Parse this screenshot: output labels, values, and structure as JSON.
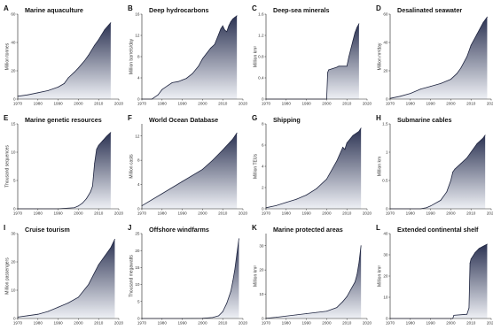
{
  "colors": {
    "area_top": "#2b3252",
    "area_bottom": "#eef0f5",
    "line": "#1f2540"
  },
  "chart_data": [
    {
      "type": "area",
      "letter": "A",
      "title": "Marine aquaculture",
      "ylabel": "Million tonnes",
      "xlim": [
        1970,
        2020
      ],
      "ylim": [
        0,
        60
      ],
      "yticks": [
        0,
        20,
        40,
        60
      ],
      "xticks": [
        1970,
        1980,
        1990,
        2000,
        2010,
        2020
      ],
      "x": [
        1970,
        1975,
        1980,
        1985,
        1990,
        1993,
        1995,
        1998,
        2000,
        2003,
        2005,
        2008,
        2010,
        2013,
        2016
      ],
      "values": [
        2,
        3,
        4.5,
        6,
        8.5,
        11,
        15,
        19,
        22,
        27,
        31,
        38,
        42,
        49,
        54
      ]
    },
    {
      "type": "area",
      "letter": "B",
      "title": "Deep hydrocarbons",
      "ylabel": "Million barrels/day",
      "xlim": [
        1970,
        2020
      ],
      "ylim": [
        0,
        16
      ],
      "yticks": [
        0,
        4,
        8,
        12,
        16
      ],
      "xticks": [
        1970,
        1980,
        1990,
        2000,
        2010,
        2020
      ],
      "x": [
        1970,
        1975,
        1978,
        1980,
        1983,
        1985,
        1988,
        1990,
        1992,
        1995,
        1998,
        2000,
        2002,
        2004,
        2006,
        2008,
        2009,
        2010,
        2011,
        2012,
        2013,
        2014,
        2015,
        2016,
        2017
      ],
      "values": [
        0,
        0,
        0.8,
        1.8,
        2.6,
        3.1,
        3.3,
        3.6,
        3.9,
        4.8,
        6.2,
        7.6,
        8.6,
        9.6,
        10.3,
        12.2,
        13.2,
        13.8,
        13.0,
        12.7,
        13.8,
        14.6,
        15.1,
        15.4,
        15.7
      ]
    },
    {
      "type": "area",
      "letter": "C",
      "title": "Deep-sea minerals",
      "ylabel": "Million km²",
      "xlim": [
        1970,
        2020
      ],
      "ylim": [
        0,
        1.6
      ],
      "yticks": [
        0,
        0.4,
        0.8,
        1.2,
        1.6
      ],
      "xticks": [
        1970,
        1980,
        1990,
        2000,
        2010,
        2020
      ],
      "x": [
        1970,
        2000,
        2000.5,
        2001,
        2005,
        2006,
        2010,
        2011,
        2012,
        2013,
        2014,
        2015,
        2016
      ],
      "values": [
        0,
        0,
        0.5,
        0.55,
        0.6,
        0.62,
        0.62,
        0.8,
        0.95,
        1.1,
        1.25,
        1.35,
        1.42
      ]
    },
    {
      "type": "area",
      "letter": "D",
      "title": "Desalinated seawater",
      "ylabel": "Million m³/day",
      "xlim": [
        1970,
        2020
      ],
      "ylim": [
        0,
        60
      ],
      "yticks": [
        0,
        20,
        40,
        60
      ],
      "xticks": [
        1970,
        1980,
        1990,
        2000,
        2010,
        2020
      ],
      "x": [
        1970,
        1975,
        1980,
        1985,
        1990,
        1995,
        2000,
        2003,
        2005,
        2008,
        2010,
        2013,
        2016,
        2018
      ],
      "values": [
        0.5,
        2,
        4,
        7,
        9,
        11,
        14,
        18,
        22,
        30,
        38,
        46,
        54,
        58
      ]
    },
    {
      "type": "area",
      "letter": "E",
      "title": "Marine genetic resources",
      "ylabel": "Thousand sequences",
      "xlim": [
        1970,
        2020
      ],
      "ylim": [
        0,
        15
      ],
      "yticks": [
        0,
        5,
        10,
        15
      ],
      "xticks": [
        1970,
        1980,
        1990,
        2000,
        2010,
        2020
      ],
      "x": [
        1970,
        1990,
        1998,
        2000,
        2002,
        2004,
        2006,
        2007,
        2008,
        2009,
        2010,
        2012,
        2014,
        2016
      ],
      "values": [
        0,
        0,
        0.2,
        0.5,
        1,
        1.8,
        3,
        4,
        8,
        10.5,
        11.2,
        12,
        12.8,
        13.5
      ]
    },
    {
      "type": "area",
      "letter": "F",
      "title": "World Ocean Database",
      "ylabel": "Million casts",
      "xlim": [
        1970,
        2020
      ],
      "ylim": [
        0,
        14
      ],
      "yticks": [
        0,
        4,
        8,
        12
      ],
      "xticks": [
        1970,
        1980,
        1990,
        2000,
        2010,
        2020
      ],
      "x": [
        1970,
        1980,
        1990,
        2000,
        2005,
        2010,
        2015,
        2017
      ],
      "values": [
        0.5,
        2.5,
        4.5,
        6.5,
        8,
        9.7,
        11.5,
        12.5
      ]
    },
    {
      "type": "area",
      "letter": "G",
      "title": "Shipping",
      "ylabel": "Million TEUs",
      "xlim": [
        1970,
        2020
      ],
      "ylim": [
        0,
        8
      ],
      "yticks": [
        0,
        2,
        4,
        6,
        8
      ],
      "xticks": [
        1970,
        1980,
        1990,
        2000,
        2010,
        2020
      ],
      "x": [
        1970,
        1975,
        1980,
        1985,
        1990,
        1995,
        2000,
        2005,
        2008,
        2009,
        2010,
        2013,
        2016,
        2017
      ],
      "values": [
        0.1,
        0.3,
        0.6,
        0.9,
        1.3,
        1.9,
        2.8,
        4.5,
        5.8,
        5.6,
        6.2,
        6.9,
        7.3,
        7.6
      ]
    },
    {
      "type": "area",
      "letter": "H",
      "title": "Submarine cables",
      "ylabel": "Million km",
      "xlim": [
        1970,
        2020
      ],
      "ylim": [
        0,
        1.5
      ],
      "yticks": [
        0,
        0.5,
        1,
        1.5
      ],
      "xticks": [
        1970,
        1980,
        1990,
        2000,
        2010,
        2020
      ],
      "x": [
        1970,
        1985,
        1988,
        1990,
        1995,
        1998,
        2000,
        2001,
        2002,
        2005,
        2008,
        2010,
        2013,
        2016,
        2017
      ],
      "values": [
        0,
        0,
        0.02,
        0.05,
        0.15,
        0.3,
        0.5,
        0.65,
        0.7,
        0.8,
        0.9,
        1.0,
        1.15,
        1.25,
        1.3
      ]
    },
    {
      "type": "area",
      "letter": "I",
      "title": "Cruise tourism",
      "ylabel": "Million passengers",
      "xlim": [
        1970,
        2020
      ],
      "ylim": [
        0,
        30
      ],
      "yticks": [
        0,
        10,
        20,
        30
      ],
      "xticks": [
        1970,
        1980,
        1990,
        2000,
        2010,
        2020
      ],
      "x": [
        1970,
        1975,
        1980,
        1985,
        1990,
        1995,
        2000,
        2005,
        2010,
        2013,
        2016,
        2018
      ],
      "values": [
        0.5,
        1,
        1.5,
        2.5,
        4,
        5.5,
        7.5,
        12,
        19,
        22,
        25,
        28
      ]
    },
    {
      "type": "area",
      "letter": "J",
      "title": "Offshore windfarms",
      "ylabel": "Thousand megawatts",
      "xlim": [
        1970,
        2020
      ],
      "ylim": [
        0,
        25
      ],
      "yticks": [
        0,
        5,
        10,
        15,
        20,
        25
      ],
      "xticks": [
        1970,
        1980,
        1990,
        2000,
        2010,
        2020
      ],
      "x": [
        1970,
        1990,
        2000,
        2005,
        2008,
        2010,
        2012,
        2014,
        2015,
        2016,
        2017,
        2018
      ],
      "values": [
        0,
        0,
        0.05,
        0.3,
        0.8,
        2,
        4.5,
        8,
        11,
        14.5,
        19,
        23.5
      ]
    },
    {
      "type": "area",
      "letter": "K",
      "title": "Marine protected areas",
      "ylabel": "Million km²",
      "xlim": [
        1970,
        2020
      ],
      "ylim": [
        0,
        35
      ],
      "yticks": [
        0,
        10,
        20,
        30
      ],
      "xticks": [
        1970,
        1980,
        1990,
        2000,
        2010,
        2020
      ],
      "x": [
        1970,
        1975,
        1980,
        1985,
        1990,
        1995,
        2000,
        2005,
        2008,
        2010,
        2012,
        2014,
        2015,
        2016,
        2017
      ],
      "values": [
        0.1,
        0.5,
        1,
        1.5,
        2,
        2.5,
        3,
        4.5,
        7,
        9,
        12,
        15,
        18,
        23,
        30
      ]
    },
    {
      "type": "area",
      "letter": "L",
      "title": "Extended continental shelf",
      "ylabel": "Million km²",
      "xlim": [
        1970,
        2020
      ],
      "ylim": [
        0,
        40
      ],
      "yticks": [
        0,
        10,
        20,
        30,
        40
      ],
      "xticks": [
        1970,
        1980,
        1990,
        2000,
        2010,
        2020
      ],
      "x": [
        1970,
        2001,
        2001.5,
        2008,
        2009,
        2009.5,
        2010,
        2012,
        2014,
        2016,
        2018
      ],
      "values": [
        0,
        0,
        1.5,
        2,
        5,
        26,
        28,
        31,
        33,
        34,
        35
      ]
    }
  ]
}
